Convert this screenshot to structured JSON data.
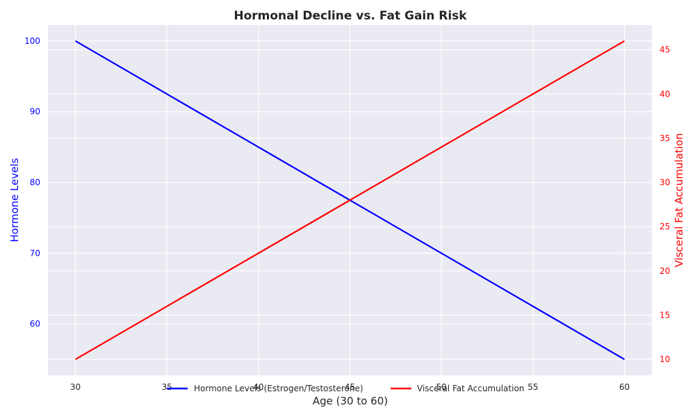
{
  "chart_data": {
    "type": "line",
    "title": "Hormonal Decline vs. Fat Gain Risk",
    "xlabel": "Age (30 to 60)",
    "x": [
      30,
      60
    ],
    "xticks": [
      30,
      35,
      40,
      45,
      50,
      55,
      60
    ],
    "xlim": [
      28.5,
      61.5
    ],
    "grid": true,
    "legend_placement": "bottom-center",
    "colors": {
      "background": "#eaeaf2",
      "grid": "#ffffff",
      "left_axis": "#0000ff",
      "right_axis": "#ff0000"
    },
    "left_axis": {
      "label": "Hormone Levels",
      "ticks": [
        60,
        70,
        80,
        90,
        100
      ],
      "ylim": [
        52.75,
        102.25
      ]
    },
    "right_axis": {
      "label": "Visceral Fat Accumulation",
      "ticks": [
        10,
        15,
        20,
        25,
        30,
        35,
        40,
        45
      ],
      "ylim": [
        8.2,
        47.8
      ]
    },
    "series": [
      {
        "name": "Hormone Levels (Estrogen/Testosterone)",
        "axis": "left",
        "color": "#0000ff",
        "x": [
          30,
          60
        ],
        "values": [
          100,
          55
        ]
      },
      {
        "name": "Visceral Fat Accumulation",
        "axis": "right",
        "color": "#ff0000",
        "x": [
          30,
          60
        ],
        "values": [
          10,
          46
        ]
      }
    ]
  }
}
